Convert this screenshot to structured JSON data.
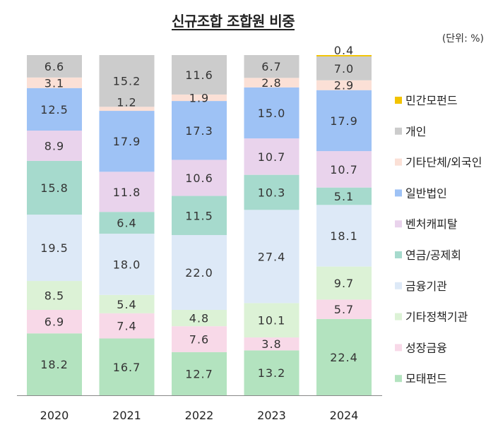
{
  "title": "신규조합 조합원 비중",
  "unit_label": "(단위: %)",
  "chart_data": {
    "type": "bar",
    "stacked": true,
    "normalized": true,
    "categories": [
      "2020",
      "2021",
      "2022",
      "2023",
      "2024"
    ],
    "ylim": [
      0,
      100
    ],
    "legend_position": "right",
    "series": [
      {
        "name": "모태펀드",
        "color": "#b3e3bf",
        "values": [
          18.2,
          16.7,
          12.7,
          13.2,
          22.4
        ]
      },
      {
        "name": "성장금융",
        "color": "#f8d9e8",
        "values": [
          6.9,
          7.4,
          7.6,
          3.8,
          5.7
        ]
      },
      {
        "name": "기타정책기관",
        "color": "#dcf2d6",
        "values": [
          8.5,
          5.4,
          4.8,
          10.1,
          9.7
        ]
      },
      {
        "name": "금융기관",
        "color": "#dde9f7",
        "values": [
          19.5,
          18.0,
          22.0,
          27.4,
          18.1
        ]
      },
      {
        "name": "연금/공제회",
        "color": "#a6dacd",
        "values": [
          15.8,
          6.4,
          11.5,
          10.3,
          5.1
        ]
      },
      {
        "name": "벤처캐피탈",
        "color": "#e9d3ec",
        "values": [
          8.9,
          11.8,
          10.6,
          10.7,
          10.7
        ]
      },
      {
        "name": "일반법인",
        "color": "#9ec2f5",
        "values": [
          12.5,
          17.9,
          17.3,
          15.0,
          17.9
        ]
      },
      {
        "name": "기타단체/외국인",
        "color": "#fbe0d6",
        "values": [
          3.1,
          1.2,
          1.9,
          2.8,
          2.9
        ]
      },
      {
        "name": "개인",
        "color": "#cccccc",
        "values": [
          6.6,
          15.2,
          11.6,
          6.7,
          7.0
        ]
      },
      {
        "name": "민간모펀드",
        "color": "#f2c300",
        "values": [
          0.0,
          0.0,
          0.0,
          0.0,
          0.4
        ]
      }
    ],
    "data_labels": {
      "2020": [
        "18.2",
        "6.9",
        "8.5",
        "19.5",
        "15.8",
        "8.9",
        "12.5",
        "3.1",
        "6.6",
        ""
      ],
      "2021": [
        "16.7",
        "7.4",
        "5.4",
        "18.0",
        "6.4",
        "11.8",
        "17.9",
        "1.2",
        "15.2",
        ""
      ],
      "2022": [
        "12.7",
        "7.6",
        "4.8",
        "22.0",
        "11.5",
        "10.6",
        "17.3",
        "1.9",
        "11.6",
        ""
      ],
      "2023": [
        "13.2",
        "3.8",
        "10.1",
        "27.4",
        "10.3",
        "10.7",
        "15.0",
        "2.8",
        "6.7",
        ""
      ],
      "2024": [
        "22.4",
        "5.7",
        "9.7",
        "18.1",
        "5.1",
        "10.7",
        "17.9",
        "2.9",
        "7.0",
        "0.4"
      ]
    },
    "legend_order": [
      "민간모펀드",
      "개인",
      "기타단체/외국인",
      "일반법인",
      "벤처캐피탈",
      "연금/공제회",
      "금융기관",
      "기타정책기관",
      "성장금융",
      "모태펀드"
    ]
  }
}
